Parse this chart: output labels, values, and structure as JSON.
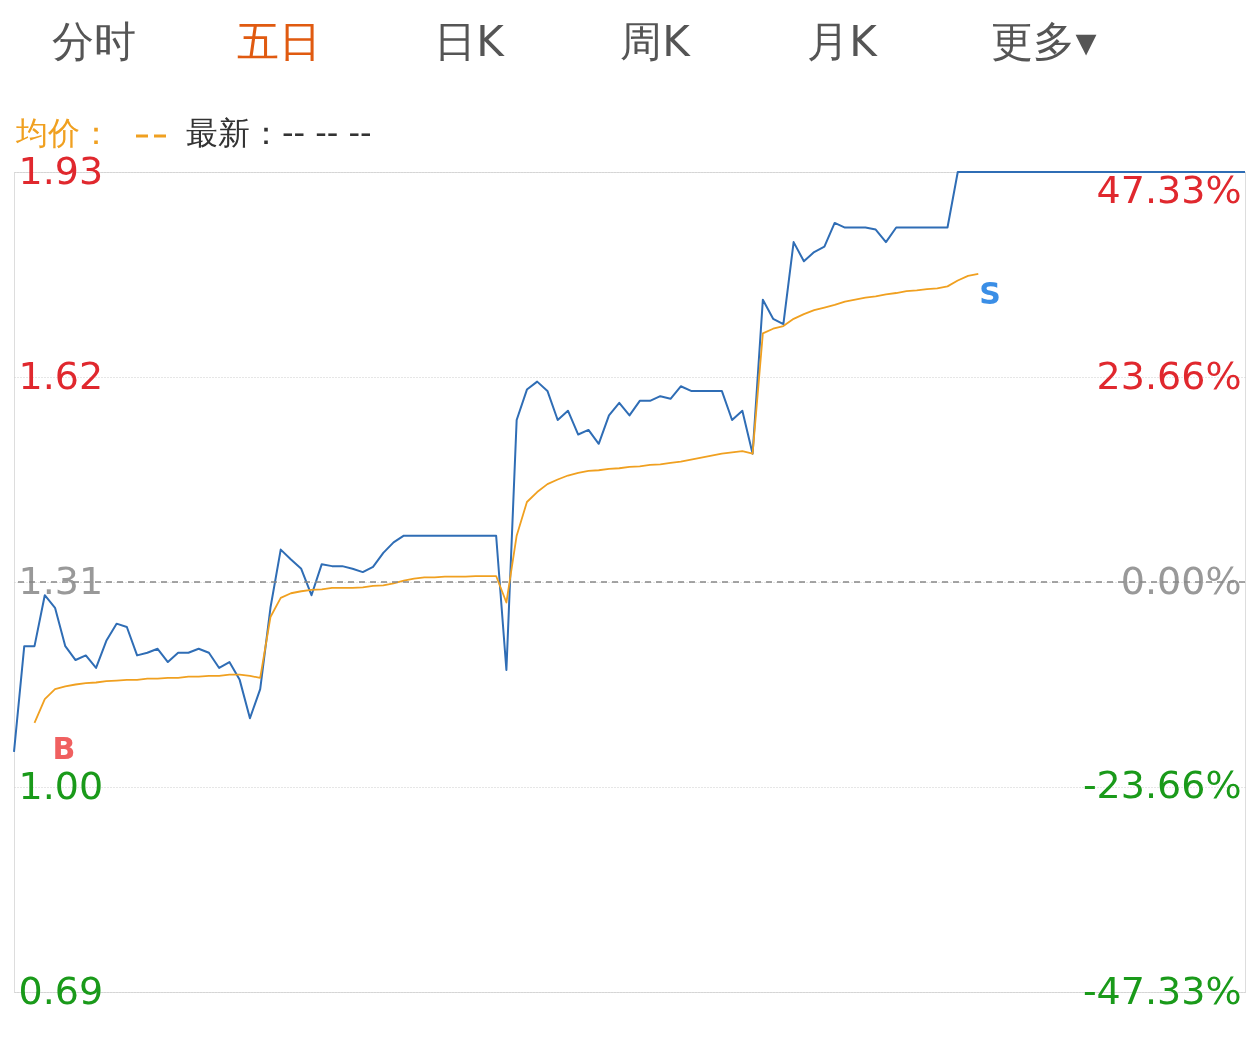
{
  "chart_data": {
    "type": "line",
    "annotations": [
      "分时",
      "五日",
      "日K",
      "周K",
      "月K",
      "更多▾",
      "最新：-- -- --",
      "B",
      "S"
    ],
    "categories": [
      null,
      null,
      null,
      null,
      null,
      null,
      null,
      null,
      null,
      null,
      null,
      null,
      null,
      null,
      null,
      null,
      null,
      null,
      null,
      null,
      null,
      null,
      null,
      null,
      null,
      null,
      null,
      null,
      null,
      null,
      null,
      null,
      null,
      null,
      null,
      null,
      null,
      null,
      null,
      null,
      null,
      null,
      null,
      null,
      null,
      null,
      null,
      null,
      null,
      null,
      null,
      null,
      null,
      null,
      null,
      null,
      null,
      null,
      null,
      null,
      null,
      null,
      null,
      null,
      null,
      null,
      null,
      null,
      null,
      null,
      null,
      null,
      null,
      null,
      null,
      null,
      null,
      null,
      null,
      null,
      null,
      null,
      null,
      null,
      null,
      null,
      null,
      null,
      null,
      null,
      null,
      null,
      null,
      null,
      null,
      null,
      null,
      null,
      null,
      null,
      null,
      null,
      null,
      null,
      null,
      null,
      null,
      null,
      null,
      null,
      null,
      null,
      null,
      null,
      null,
      null,
      null,
      null,
      null,
      null,
      null
    ],
    "series": [
      {
        "color": "#2f6db5",
        "values": [
          1.053,
          1.213,
          1.213,
          1.29,
          1.271,
          1.213,
          1.192,
          1.199,
          1.18,
          1.221,
          1.247,
          1.242,
          1.199,
          1.203,
          1.209,
          1.189,
          1.203,
          1.203,
          1.209,
          1.203,
          1.18,
          1.189,
          1.162,
          1.104,
          1.148,
          1.271,
          1.359,
          1.344,
          1.33,
          1.29,
          1.337,
          1.334,
          1.334,
          1.33,
          1.325,
          1.333,
          1.354,
          1.37,
          1.38,
          1.38,
          1.38,
          1.38,
          1.38,
          1.38,
          1.38,
          1.38,
          1.38,
          1.38,
          1.177,
          1.555,
          1.601,
          1.613,
          1.599,
          1.555,
          1.569,
          1.533,
          1.54,
          1.519,
          1.562,
          1.581,
          1.562,
          1.584,
          1.584,
          1.591,
          1.587,
          1.606,
          1.599,
          1.599,
          1.599,
          1.599,
          1.555,
          1.569,
          1.504,
          1.737,
          1.708,
          1.7,
          1.824,
          1.795,
          1.809,
          1.817,
          1.853,
          1.846,
          1.846,
          1.846,
          1.843,
          1.824,
          1.846,
          1.846,
          1.846,
          1.846,
          1.846,
          1.846,
          1.93,
          1.93,
          1.93,
          1.93,
          1.93,
          1.93,
          1.93,
          1.93,
          1.93,
          1.93,
          1.93,
          1.93,
          1.93,
          1.93,
          1.93,
          1.93,
          1.93,
          1.93,
          1.93,
          1.93,
          1.93,
          1.93,
          1.93,
          1.93,
          1.93,
          1.93,
          1.93,
          1.93,
          1.93
        ]
      },
      {
        "name": "均价：",
        "color": "#f0a020",
        "values": [
          null,
          null,
          1.097,
          1.133,
          1.148,
          1.152,
          1.155,
          1.157,
          1.158,
          1.16,
          1.161,
          1.162,
          1.162,
          1.164,
          1.164,
          1.165,
          1.165,
          1.167,
          1.167,
          1.168,
          1.168,
          1.17,
          1.17,
          1.168,
          1.165,
          1.257,
          1.286,
          1.293,
          1.296,
          1.298,
          1.299,
          1.301,
          1.301,
          1.301,
          1.302,
          1.304,
          1.305,
          1.308,
          1.312,
          1.315,
          1.317,
          1.317,
          1.318,
          1.318,
          1.318,
          1.319,
          1.319,
          1.319,
          1.279,
          1.38,
          1.431,
          1.446,
          1.458,
          1.465,
          1.471,
          1.475,
          1.478,
          1.479,
          1.481,
          1.482,
          1.484,
          1.485,
          1.487,
          1.488,
          1.49,
          1.492,
          1.495,
          1.498,
          1.501,
          1.504,
          1.506,
          1.508,
          1.504,
          1.686,
          1.693,
          1.697,
          1.708,
          1.715,
          1.721,
          1.725,
          1.729,
          1.734,
          1.737,
          1.74,
          1.742,
          1.745,
          1.747,
          1.75,
          1.751,
          1.753,
          1.754,
          1.757,
          1.766,
          1.773,
          1.776,
          null,
          null,
          null,
          null,
          null,
          null,
          null,
          null,
          null,
          null,
          null,
          null,
          null,
          null,
          null,
          null,
          null,
          null,
          null,
          null,
          null,
          null,
          null,
          null,
          null,
          null
        ]
      }
    ],
    "ylim": [
      0.69,
      1.93
    ],
    "yticks": [
      0.69,
      {
        "value": 1.0,
        "label": "1.00"
      },
      1.31,
      1.62,
      1.93
    ],
    "y2lim": [
      -47.33,
      47.33
    ],
    "y2ticks": [
      {
        "value": -47.33,
        "label": "-47.33%"
      },
      {
        "value": -23.66,
        "label": "-23.66%"
      },
      {
        "value": 0,
        "label": "0.00%"
      },
      {
        "value": 23.66,
        "label": "23.66%"
      },
      {
        "value": 47.33,
        "label": "47.33%"
      }
    ],
    "ref_lines": [
      {
        "axis": "y",
        "value": 1.31,
        "color": "#888888",
        "line_style": "dashed"
      }
    ],
    "grid": true,
    "tick_labels": "y",
    "marker": "none",
    "line_style": "solid"
  }
}
